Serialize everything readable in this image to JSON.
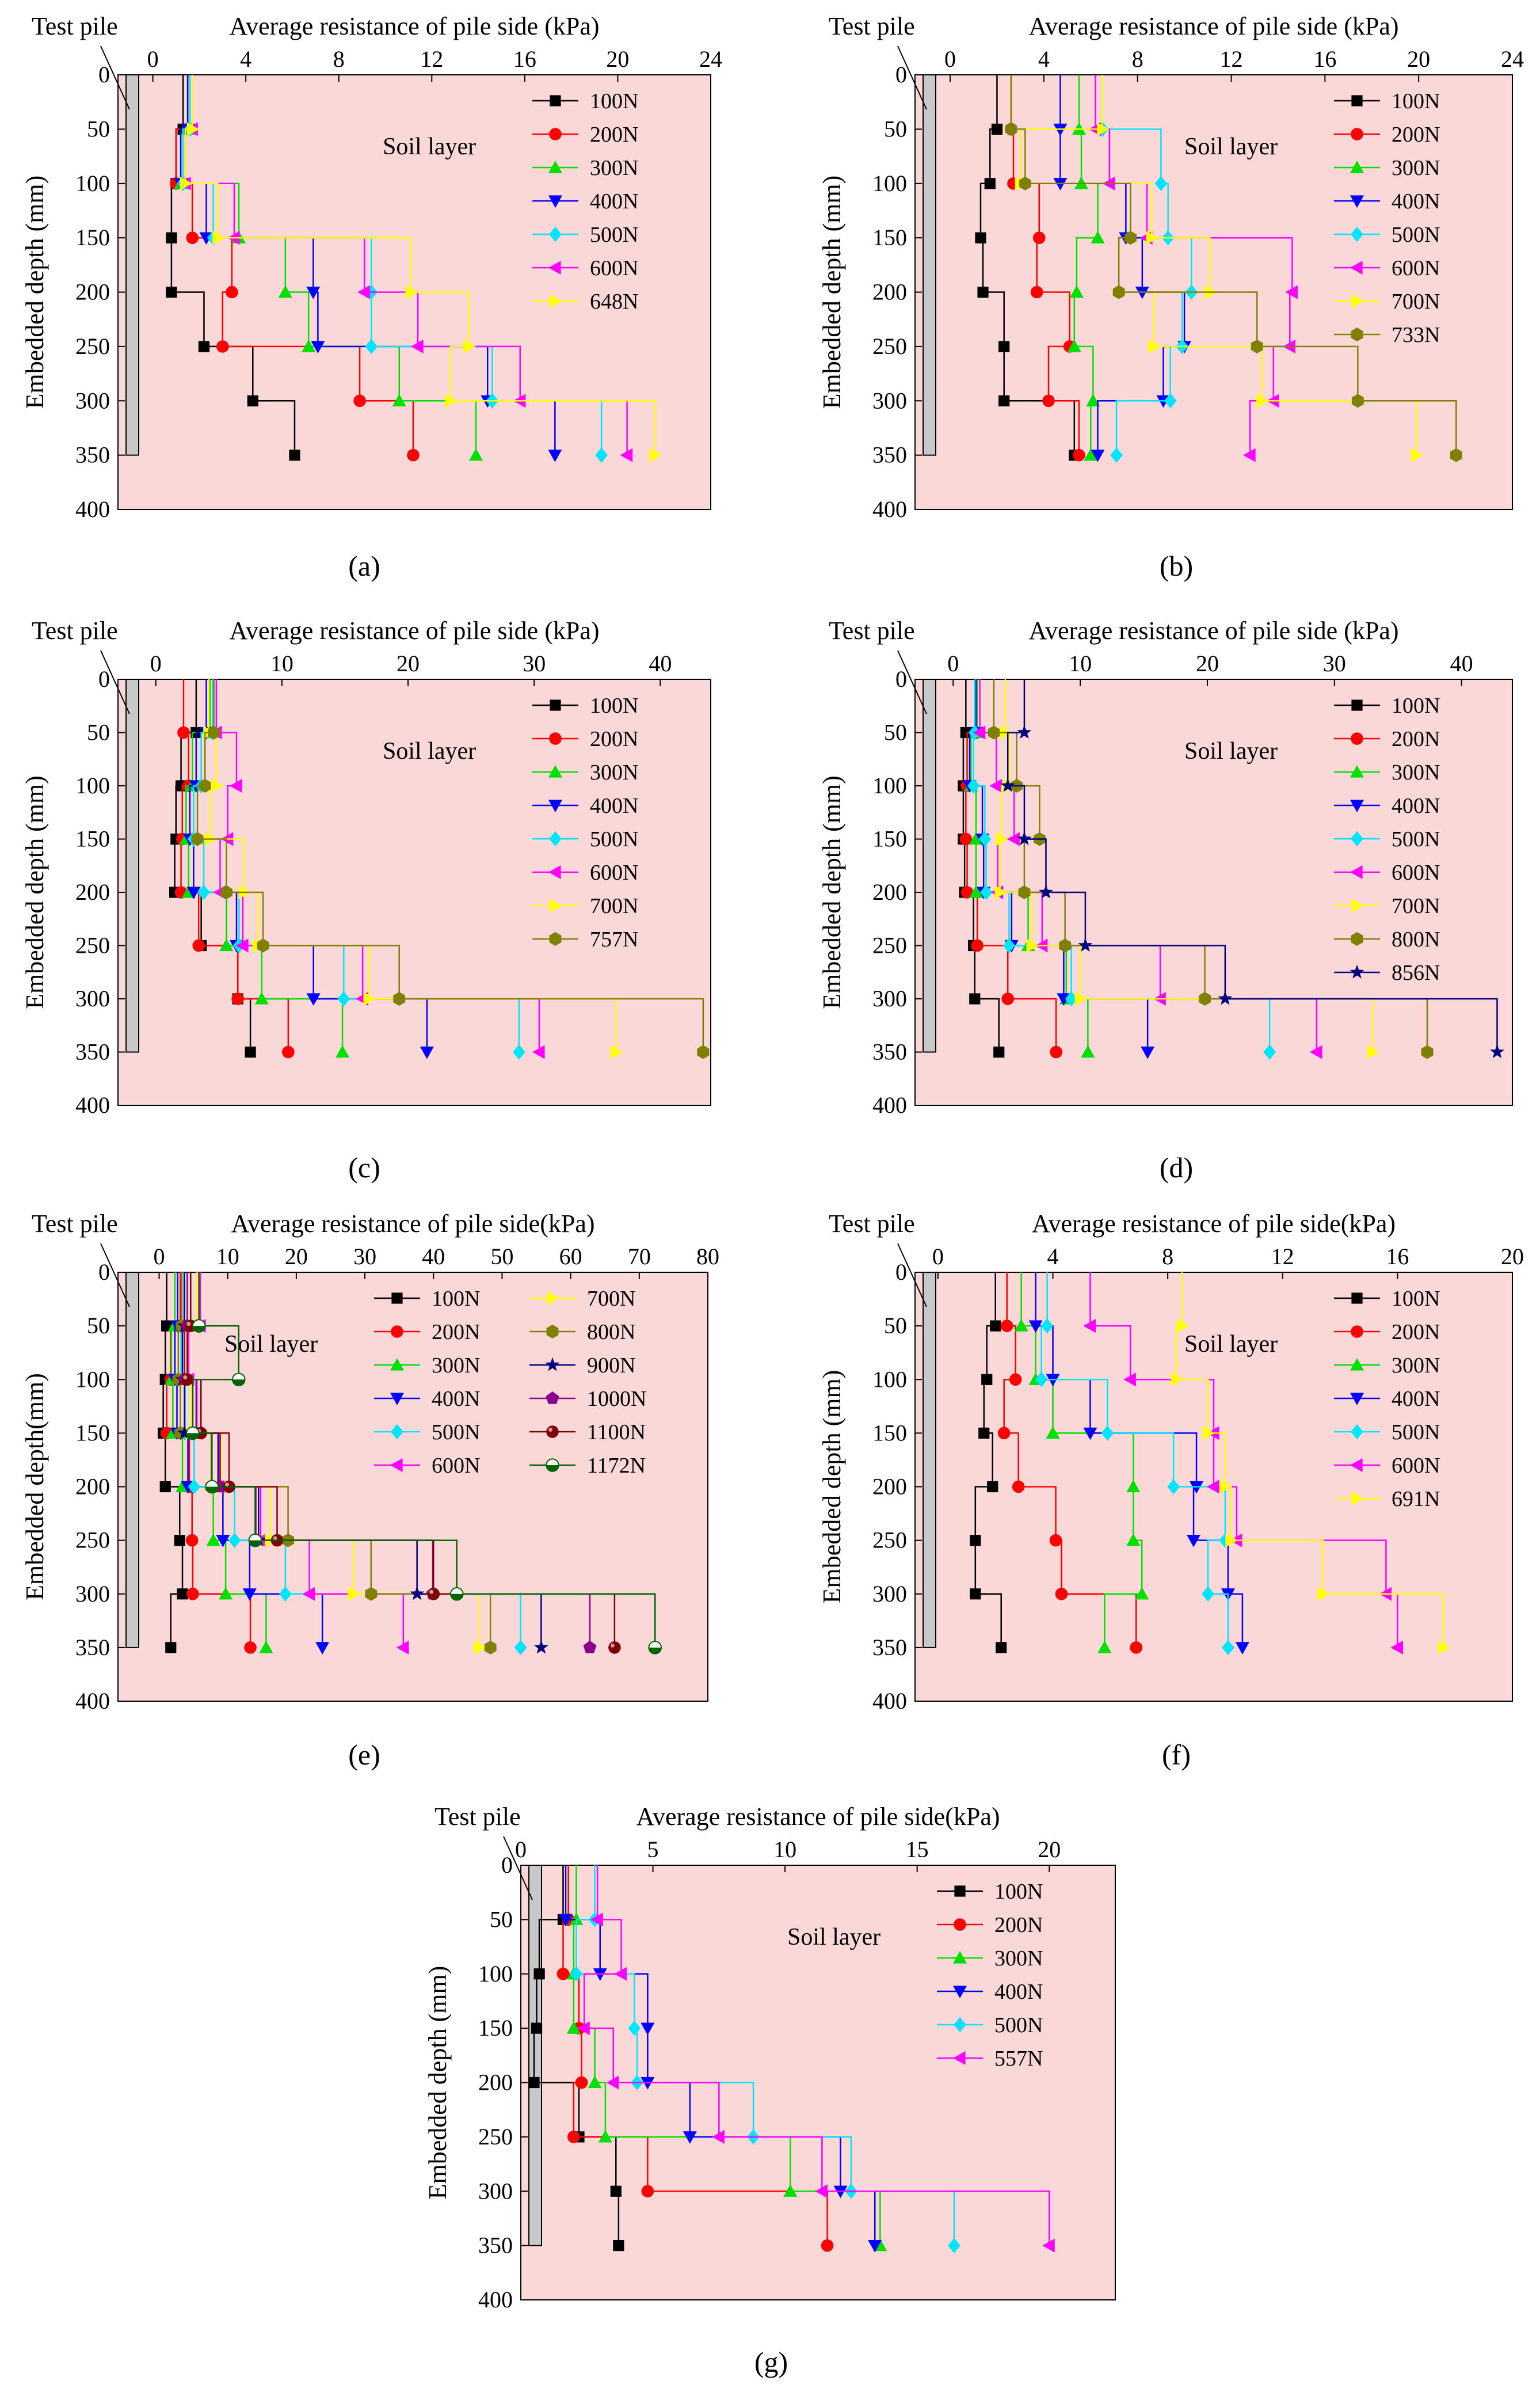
{
  "figure_colors": {
    "plot_background": "#fbd8d8",
    "pile_fill": "#c8c8c8",
    "series_palette": [
      "#000000",
      "#ff0000",
      "#00e000",
      "#0000ff",
      "#00e5ff",
      "#ff00ff",
      "#ffff00",
      "#808000",
      "#00007f",
      "#8b008b",
      "#800000",
      "#006400"
    ]
  },
  "chart_data": [
    {
      "type": "line",
      "panel": "a",
      "caption": "(a)",
      "title": "",
      "xlabel": "Average resistance of pile side (kPa)",
      "ylabel": "Embedded depth (mm)",
      "pile_label": "Test pile",
      "annotation": "Soil layer",
      "xlim": [
        -1.5,
        24
      ],
      "ylim": [
        0,
        400
      ],
      "xticks": [
        0,
        4,
        8,
        12,
        16,
        20,
        24
      ],
      "xtick_labels": [
        "0",
        "4",
        "8",
        "12",
        "16",
        "20",
        "24"
      ],
      "yticks": [
        0,
        50,
        100,
        150,
        200,
        250,
        300,
        350,
        400
      ],
      "ytick_labels": [
        "0",
        "50",
        "100",
        "150",
        "200",
        "250",
        "300",
        "350",
        "400"
      ],
      "pile_depth": 350,
      "segments": [
        0,
        50,
        100,
        150,
        200,
        250,
        300,
        350
      ],
      "series": [
        {
          "name": "100N",
          "values": [
            1.3,
            1.0,
            0.8,
            0.8,
            2.2,
            4.3,
            6.1
          ]
        },
        {
          "name": "200N",
          "values": [
            1.5,
            1.0,
            1.7,
            3.4,
            3.0,
            8.9,
            11.2
          ]
        },
        {
          "name": "300N",
          "values": [
            1.5,
            1.2,
            3.7,
            5.7,
            6.7,
            10.6,
            13.9
          ]
        },
        {
          "name": "400N",
          "values": [
            1.5,
            1.2,
            2.3,
            6.9,
            7.1,
            14.4,
            17.3
          ]
        },
        {
          "name": "500N",
          "values": [
            1.6,
            1.3,
            2.6,
            9.4,
            9.4,
            14.6,
            19.3
          ]
        },
        {
          "name": "600N",
          "values": [
            1.7,
            1.4,
            3.5,
            9.1,
            11.4,
            15.8,
            20.4
          ]
        },
        {
          "name": "648N",
          "values": [
            1.7,
            1.4,
            2.8,
            11.1,
            13.6,
            12.8,
            21.6
          ]
        }
      ],
      "legend": {
        "position": "top-right",
        "columns": 1
      }
    },
    {
      "type": "line",
      "panel": "b",
      "caption": "(b)",
      "title": "",
      "xlabel": "Average resistance of pile side (kPa)",
      "ylabel": "Embedded depth (mm)",
      "pile_label": "Test pile",
      "annotation": "Soil layer",
      "xlim": [
        -1.5,
        24
      ],
      "ylim": [
        0,
        400
      ],
      "xticks": [
        0,
        4,
        8,
        12,
        16,
        20,
        24
      ],
      "xtick_labels": [
        "0",
        "4",
        "8",
        "12",
        "16",
        "20",
        "24"
      ],
      "yticks": [
        0,
        50,
        100,
        150,
        200,
        250,
        300,
        350,
        400
      ],
      "ytick_labels": [
        "0",
        "50",
        "100",
        "150",
        "200",
        "250",
        "300",
        "350",
        "400"
      ],
      "pile_depth": 350,
      "segments": [
        0,
        50,
        100,
        150,
        200,
        250,
        300,
        350
      ],
      "series": [
        {
          "name": "100N",
          "values": [
            2.0,
            1.7,
            1.3,
            1.4,
            2.3,
            2.3,
            5.3
          ]
        },
        {
          "name": "200N",
          "values": [
            2.6,
            2.7,
            3.8,
            3.7,
            5.1,
            4.2,
            5.5
          ]
        },
        {
          "name": "300N",
          "values": [
            5.5,
            5.6,
            6.3,
            5.4,
            5.3,
            6.1,
            6.0
          ]
        },
        {
          "name": "400N",
          "values": [
            4.7,
            4.7,
            7.5,
            8.2,
            10.0,
            9.1,
            6.3
          ]
        },
        {
          "name": "500N",
          "values": [
            6.5,
            9.0,
            9.3,
            10.3,
            9.9,
            9.4,
            7.1
          ]
        },
        {
          "name": "600N",
          "values": [
            6.2,
            6.8,
            8.4,
            14.6,
            14.5,
            13.8,
            12.8
          ]
        },
        {
          "name": "700N",
          "values": [
            6.5,
            3.0,
            8.6,
            11.1,
            8.7,
            13.3,
            19.9
          ]
        },
        {
          "name": "733N",
          "values": [
            2.6,
            3.2,
            7.7,
            7.2,
            13.1,
            17.4,
            21.6
          ]
        }
      ],
      "legend": {
        "position": "top-right",
        "columns": 1
      }
    },
    {
      "type": "line",
      "panel": "c",
      "caption": "(c)",
      "title": "",
      "xlabel": "Average resistance of pile side (kPa)",
      "ylabel": "Embedded depth (mm)",
      "pile_label": "Test pile",
      "annotation": "Soil layer",
      "xlim": [
        -3,
        44
      ],
      "ylim": [
        0,
        400
      ],
      "xticks": [
        0,
        10,
        20,
        30,
        40
      ],
      "xtick_labels": [
        "0",
        "10",
        "20",
        "30",
        "40"
      ],
      "yticks": [
        0,
        50,
        100,
        150,
        200,
        250,
        300,
        350,
        400
      ],
      "ytick_labels": [
        "0",
        "50",
        "100",
        "150",
        "200",
        "250",
        "300",
        "350",
        "400"
      ],
      "pile_depth": 350,
      "segments": [
        0,
        50,
        100,
        150,
        200,
        250,
        300,
        350
      ],
      "series": [
        {
          "name": "100N",
          "values": [
            3.2,
            2.0,
            1.6,
            1.5,
            3.6,
            6.5,
            7.5
          ]
        },
        {
          "name": "200N",
          "values": [
            2.2,
            2.6,
            2.1,
            2.0,
            3.4,
            6.5,
            10.5
          ]
        },
        {
          "name": "300N",
          "values": [
            4.3,
            2.9,
            2.4,
            2.6,
            5.6,
            8.4,
            14.8
          ]
        },
        {
          "name": "400N",
          "values": [
            4.0,
            3.2,
            2.7,
            3.0,
            6.4,
            12.5,
            21.5
          ]
        },
        {
          "name": "500N",
          "values": [
            4.5,
            3.6,
            3.0,
            3.8,
            6.6,
            14.9,
            28.8
          ]
        },
        {
          "name": "600N",
          "values": [
            4.8,
            6.4,
            5.7,
            5.1,
            6.9,
            16.4,
            30.4
          ]
        },
        {
          "name": "700N",
          "values": [
            4.2,
            4.8,
            4.3,
            7.0,
            8.1,
            16.9,
            36.5
          ]
        },
        {
          "name": "757N",
          "values": [
            4.6,
            3.9,
            3.3,
            5.6,
            8.5,
            19.3,
            43.4
          ]
        }
      ],
      "legend": {
        "position": "top-right",
        "columns": 1
      }
    },
    {
      "type": "line",
      "panel": "d",
      "caption": "(d)",
      "title": "",
      "xlabel": "Average resistance of pile side (kPa)",
      "ylabel": "Embedded depth (mm)",
      "pile_label": "Test pile",
      "annotation": "Soil layer",
      "xlim": [
        -3,
        44
      ],
      "ylim": [
        0,
        400
      ],
      "xticks": [
        0,
        10,
        20,
        30,
        40
      ],
      "xtick_labels": [
        "0",
        "10",
        "20",
        "30",
        "40"
      ],
      "yticks": [
        0,
        50,
        100,
        150,
        200,
        250,
        300,
        350,
        400
      ],
      "ytick_labels": [
        "0",
        "50",
        "100",
        "150",
        "200",
        "250",
        "300",
        "350",
        "400"
      ],
      "pile_depth": 350,
      "segments": [
        0,
        50,
        100,
        150,
        200,
        250,
        300,
        350
      ],
      "series": [
        {
          "name": "100N",
          "values": [
            1.0,
            0.8,
            0.8,
            0.9,
            1.6,
            1.7,
            3.6
          ]
        },
        {
          "name": "200N",
          "values": [
            1.8,
            1.1,
            1.0,
            1.1,
            1.9,
            4.3,
            8.1
          ]
        },
        {
          "name": "300N",
          "values": [
            1.9,
            1.4,
            1.8,
            1.8,
            5.9,
            8.9,
            10.6
          ]
        },
        {
          "name": "400N",
          "values": [
            1.8,
            1.3,
            2.3,
            2.4,
            4.6,
            8.7,
            15.3
          ]
        },
        {
          "name": "500N",
          "values": [
            1.7,
            1.6,
            2.5,
            2.6,
            4.4,
            9.3,
            24.9
          ]
        },
        {
          "name": "600N",
          "values": [
            2.1,
            3.4,
            4.8,
            3.5,
            7.0,
            16.3,
            28.6
          ]
        },
        {
          "name": "700N",
          "values": [
            4.1,
            4.4,
            3.8,
            3.7,
            6.2,
            10.0,
            33.0
          ]
        },
        {
          "name": "800N",
          "values": [
            3.2,
            5.0,
            6.8,
            5.6,
            8.8,
            19.8,
            37.3
          ]
        },
        {
          "name": "856N",
          "values": [
            5.6,
            4.3,
            5.6,
            7.3,
            10.4,
            21.4,
            42.8
          ]
        }
      ],
      "legend": {
        "position": "top-right",
        "columns": 1
      }
    },
    {
      "type": "line",
      "panel": "e",
      "caption": "(e)",
      "title": "",
      "xlabel": "Average resistance of pile side(kPa)",
      "ylabel": "Embedded depth(mm)",
      "pile_label": "Test pile",
      "annotation": "Soil layer",
      "xlim": [
        -6,
        80
      ],
      "ylim": [
        0,
        400
      ],
      "xticks": [
        0,
        10,
        20,
        30,
        40,
        50,
        60,
        70,
        80
      ],
      "xtick_labels": [
        "0",
        "10",
        "20",
        "30",
        "40",
        "50",
        "60",
        "70",
        "80"
      ],
      "yticks": [
        0,
        50,
        100,
        150,
        200,
        250,
        300,
        350,
        400
      ],
      "ytick_labels": [
        "0",
        "50",
        "100",
        "150",
        "200",
        "250",
        "300",
        "350",
        "400"
      ],
      "pile_depth": 350,
      "segments": [
        0,
        50,
        100,
        150,
        200,
        250,
        300,
        350
      ],
      "series": [
        {
          "name": "100N",
          "values": [
            1.1,
            0.9,
            0.6,
            0.9,
            3.0,
            3.4,
            1.7
          ]
        },
        {
          "name": "200N",
          "values": [
            3.1,
            1.7,
            1.1,
            4.4,
            4.8,
            4.9,
            13.3
          ]
        },
        {
          "name": "300N",
          "values": [
            2.3,
            1.8,
            2.0,
            3.4,
            7.9,
            9.7,
            15.6
          ]
        },
        {
          "name": "400N",
          "values": [
            2.7,
            2.3,
            2.6,
            4.2,
            9.3,
            13.2,
            23.8
          ]
        },
        {
          "name": "500N",
          "values": [
            3.6,
            3.2,
            3.8,
            5.1,
            11.0,
            18.4,
            52.7
          ]
        },
        {
          "name": "600N",
          "values": [
            6.0,
            4.3,
            5.5,
            8.7,
            14.8,
            21.9,
            35.6
          ]
        },
        {
          "name": "700N",
          "values": [
            5.5,
            4.0,
            4.7,
            9.1,
            16.2,
            28.3,
            46.7
          ]
        },
        {
          "name": "800N",
          "values": [
            3.3,
            2.8,
            3.1,
            7.6,
            18.8,
            30.9,
            48.3
          ]
        },
        {
          "name": "900N",
          "values": [
            3.7,
            3.4,
            3.7,
            8.6,
            14.5,
            37.6,
            55.7
          ]
        },
        {
          "name": "1000N",
          "values": [
            4.1,
            3.7,
            5.4,
            8.9,
            14.1,
            39.9,
            62.8
          ]
        },
        {
          "name": "1100N",
          "values": [
            4.6,
            4.1,
            6.1,
            10.2,
            17.2,
            40.0,
            66.4
          ]
        },
        {
          "name": "1172N",
          "values": [
            5.8,
            11.6,
            4.9,
            7.7,
            14.0,
            43.4,
            72.3
          ]
        }
      ],
      "legend": {
        "position": "top-right",
        "columns": 2
      }
    },
    {
      "type": "line",
      "panel": "f",
      "caption": "(f)",
      "title": "",
      "xlabel": "Average resistance of pile side(kPa)",
      "ylabel": "Embedded depth (mm)",
      "pile_label": "Test pile",
      "annotation": "Soil layer",
      "xlim": [
        -0.8,
        20
      ],
      "ylim": [
        0,
        400
      ],
      "xticks": [
        0,
        4,
        8,
        12,
        16,
        20
      ],
      "xtick_labels": [
        "0",
        "4",
        "8",
        "12",
        "16",
        "20"
      ],
      "yticks": [
        0,
        50,
        100,
        150,
        200,
        250,
        300,
        350,
        400
      ],
      "ytick_labels": [
        "0",
        "50",
        "100",
        "150",
        "200",
        "250",
        "300",
        "350",
        "400"
      ],
      "pile_depth": 350,
      "segments": [
        0,
        50,
        100,
        150,
        200,
        250,
        300,
        350
      ],
      "series": [
        {
          "name": "100N",
          "values": [
            2.0,
            1.7,
            1.6,
            1.9,
            1.3,
            1.3,
            2.2
          ]
        },
        {
          "name": "200N",
          "values": [
            2.4,
            2.7,
            2.3,
            2.8,
            4.1,
            4.3,
            6.9
          ]
        },
        {
          "name": "300N",
          "values": [
            2.9,
            3.4,
            4.0,
            6.8,
            6.8,
            7.1,
            5.8
          ]
        },
        {
          "name": "400N",
          "values": [
            3.4,
            4.0,
            5.3,
            9.0,
            8.9,
            10.1,
            10.6
          ]
        },
        {
          "name": "500N",
          "values": [
            3.8,
            3.6,
            5.9,
            8.2,
            10.0,
            9.4,
            10.1
          ]
        },
        {
          "name": "600N",
          "values": [
            5.3,
            6.7,
            9.6,
            9.6,
            10.4,
            15.6,
            16.0
          ]
        },
        {
          "name": "691N",
          "values": [
            8.5,
            8.3,
            9.4,
            10.0,
            10.2,
            13.4,
            17.6
          ]
        }
      ],
      "legend": {
        "position": "top-right",
        "columns": 1
      }
    },
    {
      "type": "line",
      "panel": "g",
      "caption": "(g)",
      "title": "",
      "xlabel": "Average resistance of pile side(kPa)",
      "ylabel": "Embedded depth (mm)",
      "pile_label": "Test pile",
      "annotation": "Soil layer",
      "xlim": [
        0,
        22.5
      ],
      "ylim": [
        0,
        400
      ],
      "xticks": [
        0,
        5,
        10,
        15,
        20
      ],
      "xtick_labels": [
        "0",
        "5",
        "10",
        "15",
        "20"
      ],
      "yticks": [
        0,
        50,
        100,
        150,
        200,
        250,
        300,
        350,
        400
      ],
      "ytick_labels": [
        "0",
        "50",
        "100",
        "150",
        "200",
        "250",
        "300",
        "350",
        "400"
      ],
      "pile_depth": 350,
      "segments": [
        0,
        50,
        100,
        150,
        200,
        250,
        300,
        350
      ],
      "series": [
        {
          "name": "100N",
          "values": [
            1.6,
            0.7,
            0.6,
            0.5,
            2.2,
            3.6,
            3.7
          ]
        },
        {
          "name": "200N",
          "values": [
            1.8,
            1.6,
            2.2,
            2.3,
            2.0,
            4.8,
            11.6
          ]
        },
        {
          "name": "300N",
          "values": [
            2.1,
            2.0,
            2.0,
            2.8,
            3.2,
            10.2,
            13.6
          ]
        },
        {
          "name": "400N",
          "values": [
            1.7,
            3.0,
            4.8,
            4.8,
            6.4,
            12.1,
            13.4
          ]
        },
        {
          "name": "500N",
          "values": [
            2.8,
            2.1,
            4.3,
            4.4,
            8.8,
            12.5,
            16.4
          ]
        },
        {
          "name": "557N",
          "values": [
            2.9,
            3.8,
            2.4,
            3.5,
            7.5,
            11.4,
            20.0
          ]
        }
      ],
      "legend": {
        "position": "top-right",
        "columns": 1
      }
    }
  ]
}
